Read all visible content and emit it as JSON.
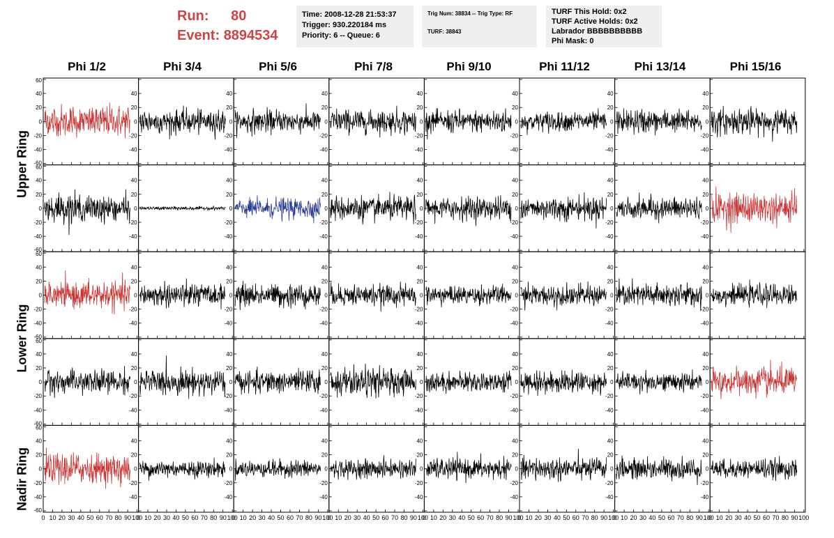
{
  "header": {
    "run_label": "Run:",
    "run_value": "80",
    "event_label": "Event:",
    "event_value": "8894534",
    "time": "Time: 2008-12-28 21:53:37",
    "trigger": "Trigger: 930.220184 ms",
    "priority": "Priority: 6 -- Queue: 6",
    "trig_num": "Trig Num: 38834 -- Trig Type: RF",
    "turf": "TURF: 38843",
    "turf_this_hold": "TURF This Hold: 0x2",
    "turf_active_holds": "TURF Active Holds: 0x2",
    "labrador": "Labrador BBBBBBBBBB",
    "phi_mask": "Phi Mask: 0"
  },
  "columns": [
    "Phi 1/2",
    "Phi 3/4",
    "Phi 5/6",
    "Phi 7/8",
    "Phi 9/10",
    "Phi 11/12",
    "Phi 13/14",
    "Phi 15/16"
  ],
  "rings": [
    "Upper Ring",
    "Lower Ring",
    "Nadir Ring"
  ],
  "axes": {
    "y_ticks": [
      "60",
      "40",
      "20",
      "0",
      "-20",
      "-40",
      "-60"
    ],
    "y_range": [
      -60,
      60
    ],
    "x_ticks": [
      "0",
      "10",
      "20",
      "30",
      "40",
      "50",
      "60",
      "70",
      "80",
      "90",
      "100"
    ],
    "x_range": [
      0,
      100
    ]
  },
  "colors": {
    "red": "#cc3333",
    "blue": "#2b3a99",
    "black": "#000000",
    "title_red": "#cc4444"
  },
  "chart_data": {
    "type": "line",
    "description_rows": 5,
    "panels_color": [
      [
        "red",
        "black",
        "black",
        "black",
        "black",
        "black",
        "black",
        "black"
      ],
      [
        "black",
        "black",
        "blue",
        "black",
        "black",
        "black",
        "black",
        "red"
      ],
      [
        "red",
        "black",
        "black",
        "black",
        "black",
        "black",
        "black",
        "black"
      ],
      [
        "black",
        "black",
        "black",
        "black",
        "black",
        "black",
        "black",
        "red"
      ],
      [
        "red",
        "black",
        "black",
        "black",
        "black",
        "black",
        "black",
        "black"
      ]
    ],
    "panels_amplitude": [
      [
        18,
        14,
        13,
        14,
        13,
        12,
        14,
        15
      ],
      [
        16,
        2,
        12,
        14,
        13,
        14,
        13,
        18
      ],
      [
        16,
        14,
        14,
        12,
        11,
        12,
        14,
        12
      ],
      [
        14,
        15,
        13,
        16,
        12,
        13,
        11,
        17
      ],
      [
        18,
        10,
        10,
        11,
        12,
        13,
        12,
        11
      ]
    ],
    "xlim": [
      0,
      100
    ],
    "ylim": [
      -60,
      60
    ]
  }
}
